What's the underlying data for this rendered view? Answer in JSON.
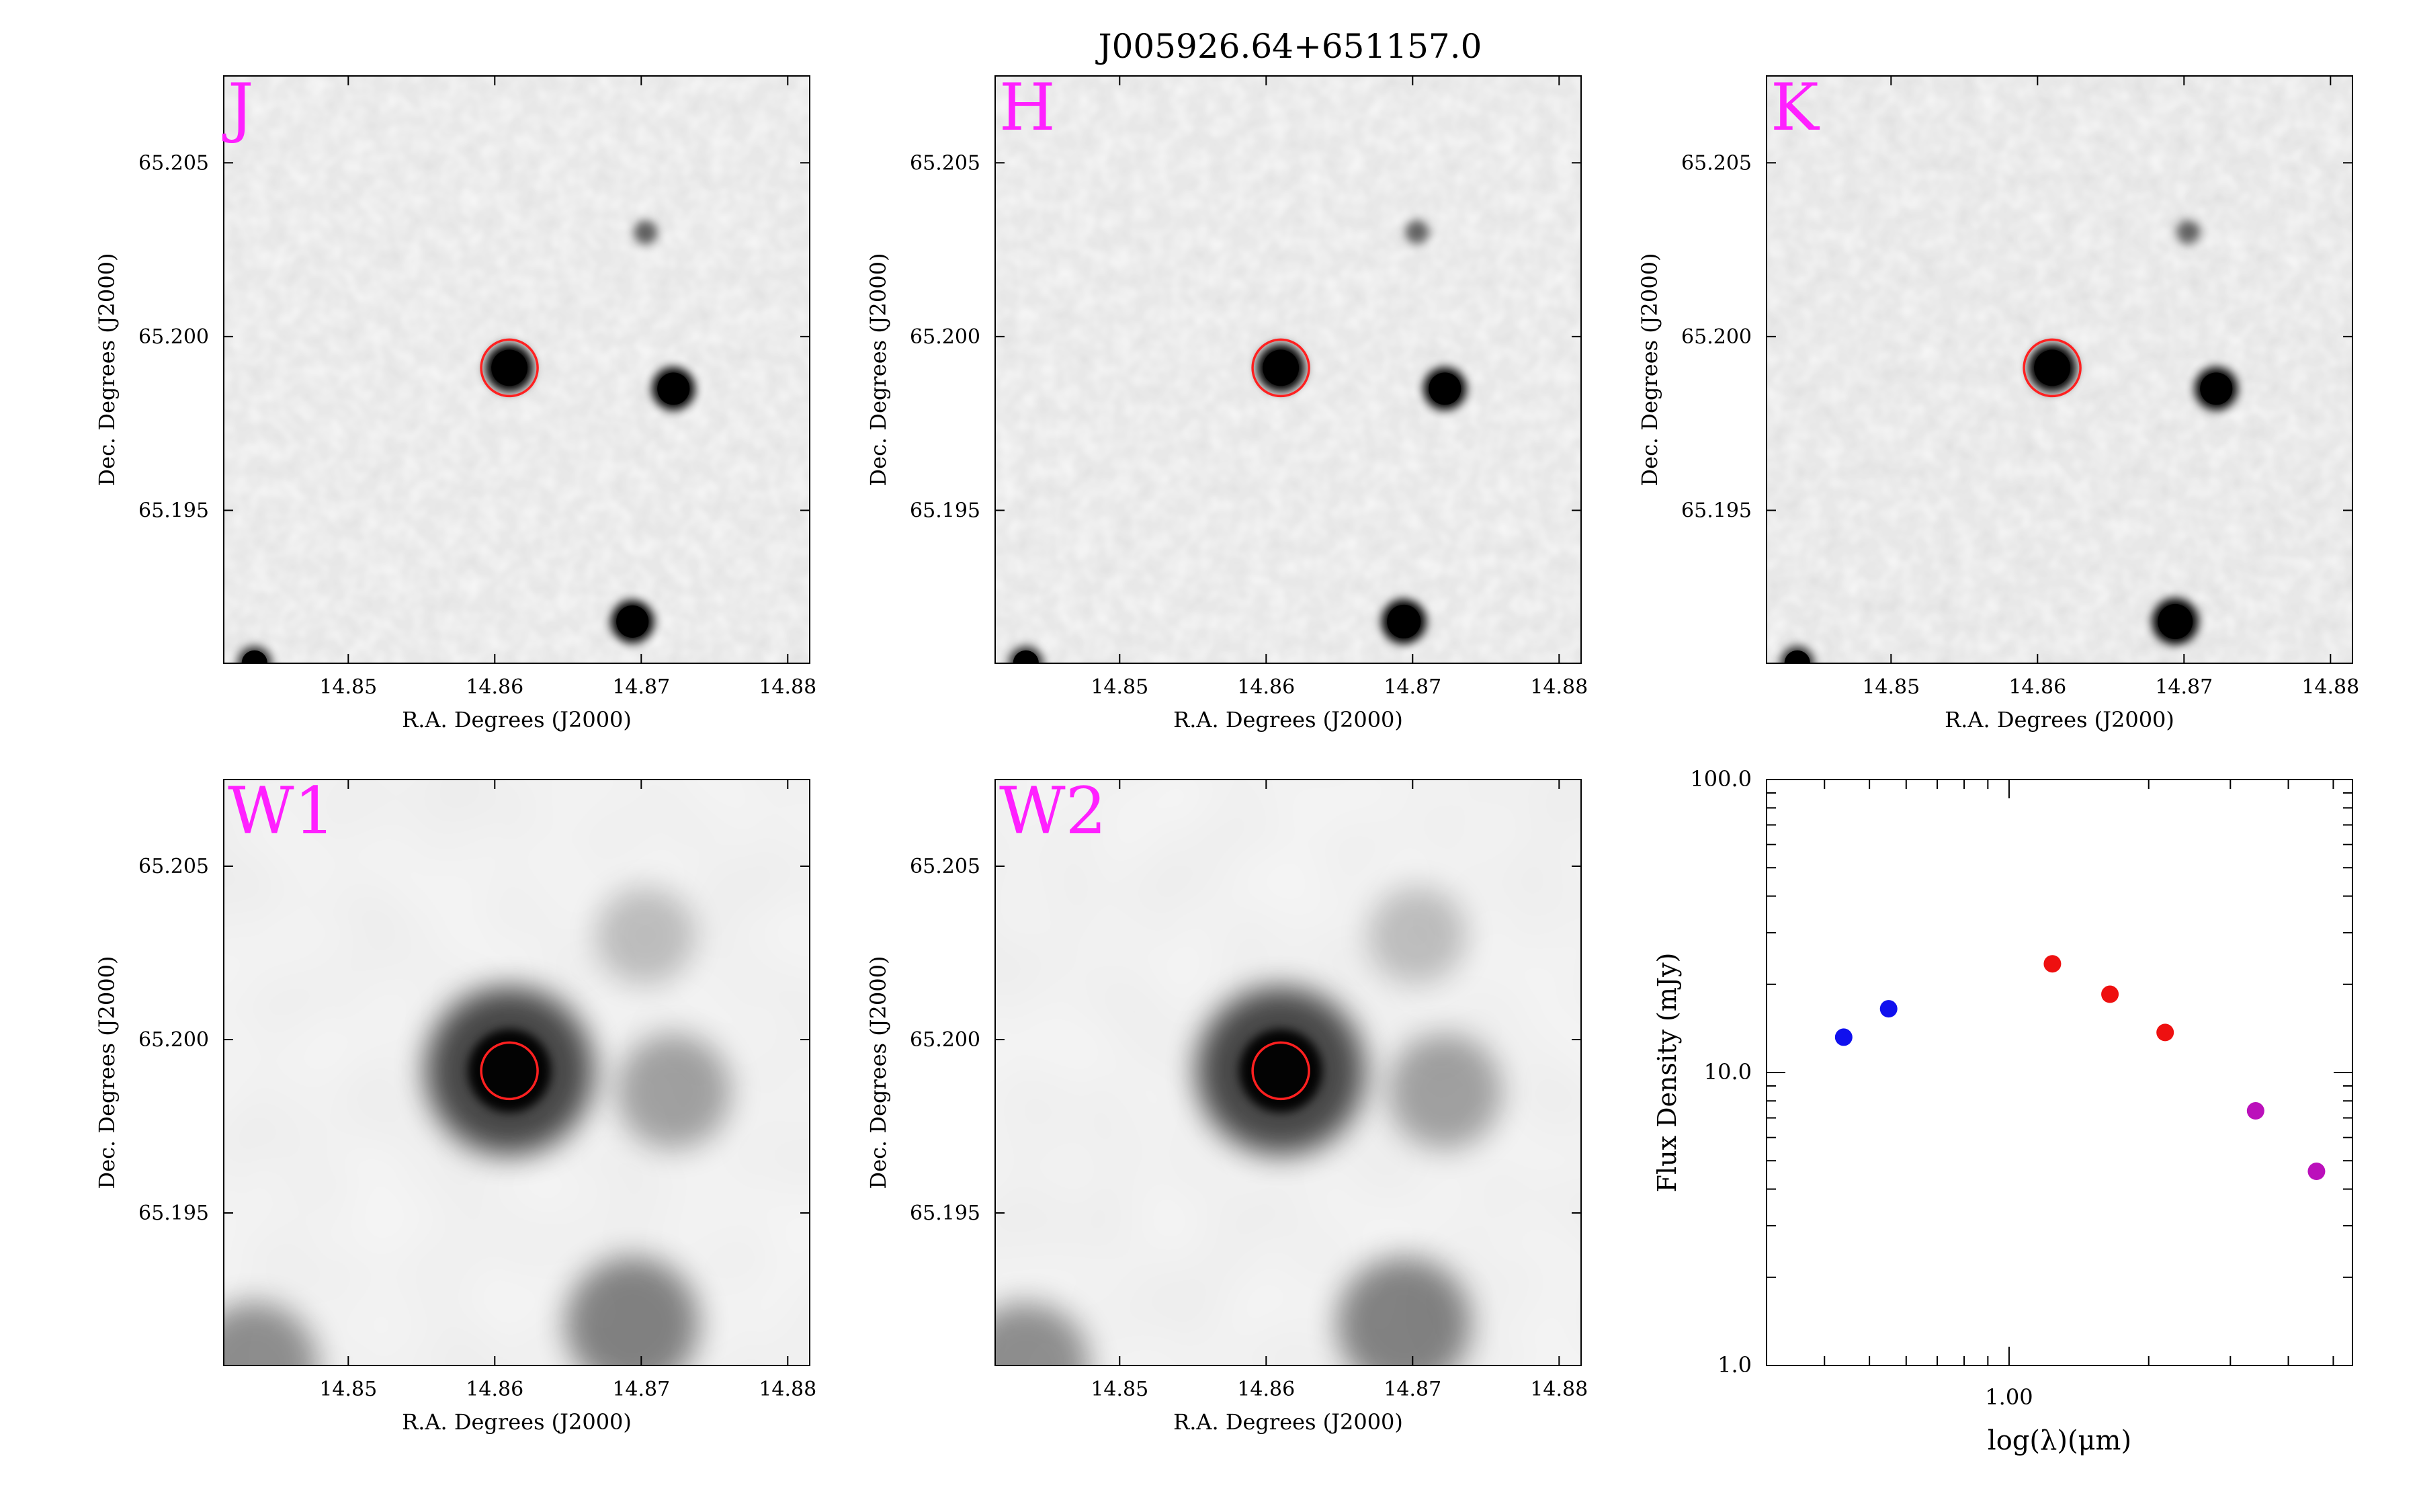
{
  "title": "J005926.64+651157.0",
  "colors": {
    "band_label": "#ff20ff",
    "aperture": "#ff2020",
    "blue": "#1010ee",
    "red": "#ee1010",
    "magenta": "#bb10bb"
  },
  "image_panels": [
    {
      "band": "J",
      "xlabel": "R.A. Degrees (J2000)",
      "ylabel": "Dec. Degrees (J2000)",
      "xticks": [
        "14.85",
        "14.86",
        "14.87",
        "14.88"
      ],
      "yticks": [
        "65.205",
        "65.200",
        "65.195"
      ]
    },
    {
      "band": "H",
      "xlabel": "R.A. Degrees (J2000)",
      "ylabel": "Dec. Degrees (J2000)",
      "xticks": [
        "14.85",
        "14.86",
        "14.87",
        "14.88"
      ],
      "yticks": [
        "65.205",
        "65.200",
        "65.195"
      ]
    },
    {
      "band": "K",
      "xlabel": "R.A. Degrees (J2000)",
      "ylabel": "Dec. Degrees (J2000)",
      "xticks": [
        "14.85",
        "14.86",
        "14.87",
        "14.88"
      ],
      "yticks": [
        "65.205",
        "65.200",
        "65.195"
      ]
    },
    {
      "band": "W1",
      "xlabel": "R.A. Degrees (J2000)",
      "ylabel": "Dec. Degrees (J2000)",
      "xticks": [
        "14.85",
        "14.86",
        "14.87",
        "14.88"
      ],
      "yticks": [
        "65.205",
        "65.200",
        "65.195"
      ]
    },
    {
      "band": "W2",
      "xlabel": "R.A. Degrees (J2000)",
      "ylabel": "Dec. Degrees (J2000)",
      "xticks": [
        "14.85",
        "14.86",
        "14.87",
        "14.88"
      ],
      "yticks": [
        "65.205",
        "65.200",
        "65.195"
      ]
    }
  ],
  "chart_data": [
    {
      "type": "heatmap",
      "band": "J",
      "xlim": [
        14.8415,
        14.8815
      ],
      "ylim": [
        65.1906,
        65.2075
      ],
      "target": {
        "ra": 14.861,
        "dec": 65.1991
      },
      "sources": [
        {
          "ra": 14.861,
          "dec": 65.1991,
          "brightness": 1.0
        },
        {
          "ra": 14.8722,
          "dec": 65.1985,
          "brightness": 0.85
        },
        {
          "ra": 14.8694,
          "dec": 65.1918,
          "brightness": 0.85
        },
        {
          "ra": 14.8703,
          "dec": 65.203,
          "brightness": 0.3
        },
        {
          "ra": 14.8436,
          "dec": 65.1906,
          "brightness": 0.6
        }
      ]
    },
    {
      "type": "heatmap",
      "band": "H",
      "xlim": [
        14.8415,
        14.8815
      ],
      "ylim": [
        65.1906,
        65.2075
      ],
      "target": {
        "ra": 14.861,
        "dec": 65.1991
      },
      "sources": [
        {
          "ra": 14.861,
          "dec": 65.1991,
          "brightness": 1.0
        },
        {
          "ra": 14.8722,
          "dec": 65.1985,
          "brightness": 0.85
        },
        {
          "ra": 14.8694,
          "dec": 65.1918,
          "brightness": 0.9
        },
        {
          "ra": 14.8703,
          "dec": 65.203,
          "brightness": 0.3
        },
        {
          "ra": 14.8436,
          "dec": 65.1906,
          "brightness": 0.6
        }
      ]
    },
    {
      "type": "heatmap",
      "band": "K",
      "xlim": [
        14.8415,
        14.8815
      ],
      "ylim": [
        65.1906,
        65.2075
      ],
      "target": {
        "ra": 14.861,
        "dec": 65.1991
      },
      "sources": [
        {
          "ra": 14.861,
          "dec": 65.1991,
          "brightness": 1.0
        },
        {
          "ra": 14.8722,
          "dec": 65.1985,
          "brightness": 0.85
        },
        {
          "ra": 14.8694,
          "dec": 65.1918,
          "brightness": 0.95
        },
        {
          "ra": 14.8703,
          "dec": 65.203,
          "brightness": 0.3
        },
        {
          "ra": 14.8436,
          "dec": 65.1906,
          "brightness": 0.6
        }
      ]
    },
    {
      "type": "heatmap",
      "band": "W1",
      "xlim": [
        14.8415,
        14.8815
      ],
      "ylim": [
        65.1906,
        65.2075
      ],
      "target": {
        "ra": 14.861,
        "dec": 65.1991
      },
      "sources": [
        {
          "ra": 14.861,
          "dec": 65.1991,
          "brightness": 1.0
        },
        {
          "ra": 14.8722,
          "dec": 65.1985,
          "brightness": 0.3
        },
        {
          "ra": 14.8694,
          "dec": 65.1918,
          "brightness": 0.55
        },
        {
          "ra": 14.8703,
          "dec": 65.203,
          "brightness": 0.08
        },
        {
          "ra": 14.8436,
          "dec": 65.1906,
          "brightness": 0.45
        }
      ]
    },
    {
      "type": "heatmap",
      "band": "W2",
      "xlim": [
        14.8415,
        14.8815
      ],
      "ylim": [
        65.1906,
        65.2075
      ],
      "target": {
        "ra": 14.861,
        "dec": 65.1991
      },
      "sources": [
        {
          "ra": 14.861,
          "dec": 65.1991,
          "brightness": 1.0
        },
        {
          "ra": 14.8722,
          "dec": 65.1985,
          "brightness": 0.3
        },
        {
          "ra": 14.8694,
          "dec": 65.1918,
          "brightness": 0.55
        },
        {
          "ra": 14.8703,
          "dec": 65.203,
          "brightness": 0.08
        },
        {
          "ra": 14.8436,
          "dec": 65.1906,
          "brightness": 0.45
        }
      ]
    },
    {
      "type": "scatter",
      "xlabel": "log(λ)(μm)",
      "ylabel": "Flux Density (mJy)",
      "xscale": "log",
      "yscale": "log",
      "xlim": [
        0.3,
        5.5
      ],
      "ylim": [
        1.0,
        100.0
      ],
      "xticks": [
        "1.00"
      ],
      "yticks": [
        "1.0",
        "10.0",
        "100.0"
      ],
      "points": [
        {
          "x": 0.44,
          "y": 13.2,
          "color": "blue"
        },
        {
          "x": 0.55,
          "y": 16.5,
          "color": "blue"
        },
        {
          "x": 1.24,
          "y": 23.5,
          "color": "red"
        },
        {
          "x": 1.65,
          "y": 18.5,
          "color": "red"
        },
        {
          "x": 2.17,
          "y": 13.7,
          "color": "red"
        },
        {
          "x": 3.4,
          "y": 7.4,
          "color": "magenta"
        },
        {
          "x": 4.6,
          "y": 4.6,
          "color": "magenta"
        }
      ]
    }
  ]
}
